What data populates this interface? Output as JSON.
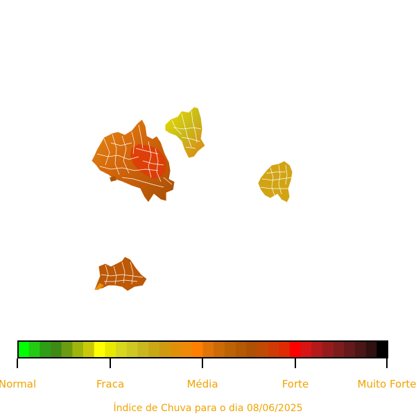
{
  "caption": "Índice de Chuva para o dia 08/06/2025",
  "legend": {
    "labels": [
      "Normal",
      "Fraca",
      "Média",
      "Forte",
      "Muito Forte"
    ],
    "colors": [
      "#00ff00",
      "#22cc11",
      "#2e9e16",
      "#3f8a14",
      "#6b9b10",
      "#9fb40c",
      "#c9c90a",
      "#ffff00",
      "#e8e800",
      "#d8d71e",
      "#cfc822",
      "#c9b71e",
      "#c9a816",
      "#cf9a10",
      "#e09008",
      "#ef8a06",
      "#ff8000",
      "#e07408",
      "#cc6a08",
      "#be6206",
      "#b45a04",
      "#b05004",
      "#c04a04",
      "#d03a04",
      "#e02a02",
      "#ff0000",
      "#d81414",
      "#b41a1a",
      "#961c1c",
      "#7c1c1c",
      "#641a1a",
      "#4c1616",
      "#301010",
      "#000000"
    ]
  },
  "map": {
    "regions": [
      {
        "name": "region-west",
        "fill": "#c85c08"
      },
      {
        "name": "region-west-core",
        "fill": "#e03808"
      },
      {
        "name": "region-north",
        "fill": "#c9b41a"
      },
      {
        "name": "region-east",
        "fill": "#d1a414"
      },
      {
        "name": "region-south",
        "fill": "#bd5806"
      }
    ]
  }
}
